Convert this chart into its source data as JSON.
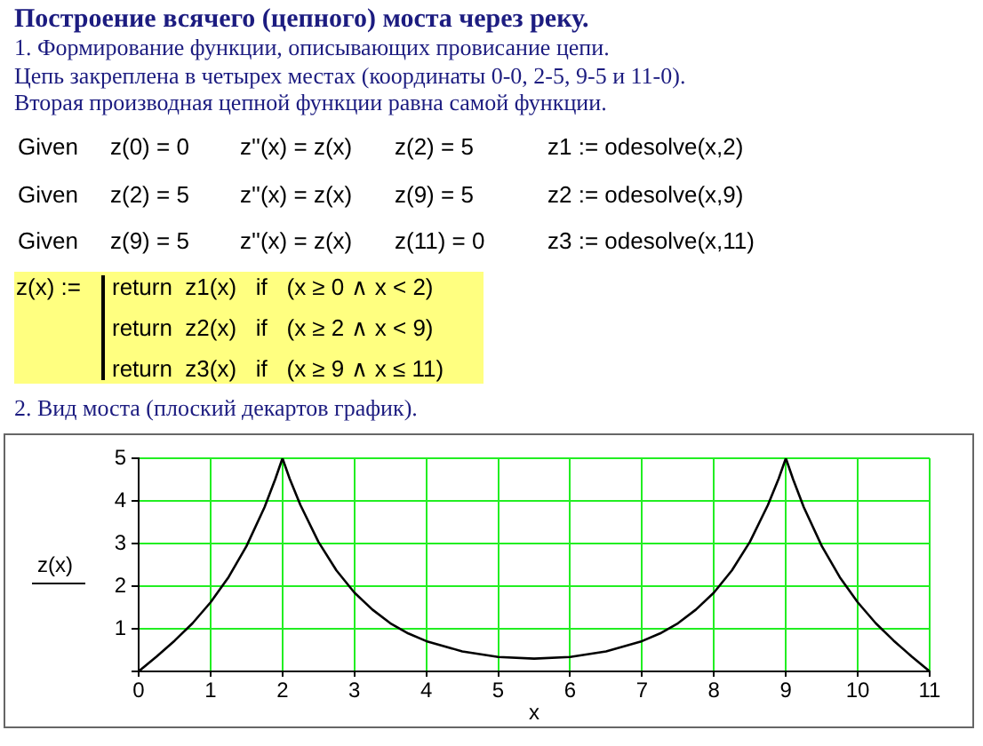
{
  "chart_data": {
    "type": "line",
    "title": "Построение всячего (цепного) моста через реку.",
    "annotations": [
      "1. Формирование функции, описывающих провисание цепи.",
      "Цепь закреплена в четырех местах (координаты 0-0, 2-5, 9-5 и 11-0).",
      "Вторая производная цепной функции равна самой функции.",
      "Given",
      "z(0) = 0",
      "z''(x) = z(x)",
      "z(2) = 5",
      "z1 := odesolve(x,2)",
      "Given",
      "z(2) = 5",
      "z''(x) = z(x)",
      "z(9) = 5",
      "z2 := odesolve(x,9)",
      "Given",
      "z(9) = 5",
      "z''(x) = z(x)",
      "z(11) = 0",
      "z3 := odesolve(x,11)",
      "z(x) :=",
      "return  z1(x)   if   (x ≥ 0 ∧ x < 2)",
      "return  z2(x)   if   (x ≥ 2 ∧ x < 9)",
      "return  z3(x)   if   (x ≥ 9 ∧ x ≤ 11)",
      "2. Вид моста (плоский декартов график)."
    ],
    "xlabel": "x",
    "ylabel": "z(x)",
    "x": [
      0,
      0.25,
      0.5,
      0.75,
      1,
      1.25,
      1.5,
      1.75,
      1.9,
      2,
      2.1,
      2.25,
      2.5,
      2.75,
      3,
      3.25,
      3.5,
      3.75,
      4,
      4.5,
      5,
      5.5,
      6,
      6.5,
      7,
      7.25,
      7.5,
      7.75,
      8,
      8.25,
      8.5,
      8.75,
      8.9,
      9,
      9.1,
      9.25,
      9.5,
      9.75,
      10,
      10.25,
      10.5,
      10.75,
      11
    ],
    "series": [
      {
        "color": "#000000",
        "values": [
          0,
          0.35,
          0.72,
          1.13,
          1.62,
          2.21,
          2.94,
          3.85,
          4.51,
          5,
          4.52,
          3.9,
          3.04,
          2.37,
          1.85,
          1.45,
          1.13,
          0.89,
          0.71,
          0.47,
          0.34,
          0.3,
          0.34,
          0.47,
          0.71,
          0.89,
          1.13,
          1.45,
          1.85,
          2.37,
          3.04,
          3.9,
          4.52,
          5,
          4.51,
          3.85,
          2.94,
          2.21,
          1.62,
          1.13,
          0.72,
          0.35,
          0
        ]
      }
    ],
    "xlim": [
      0,
      11
    ],
    "ylim": [
      0,
      5
    ],
    "xticks": [
      0,
      1,
      2,
      3,
      4,
      5,
      6,
      7,
      8,
      9,
      10,
      11
    ],
    "yticks": [
      {
        "value": 0,
        "label": null
      },
      1,
      2,
      3,
      4,
      5
    ],
    "grid": true,
    "marker": "none",
    "line_style": "solid"
  }
}
